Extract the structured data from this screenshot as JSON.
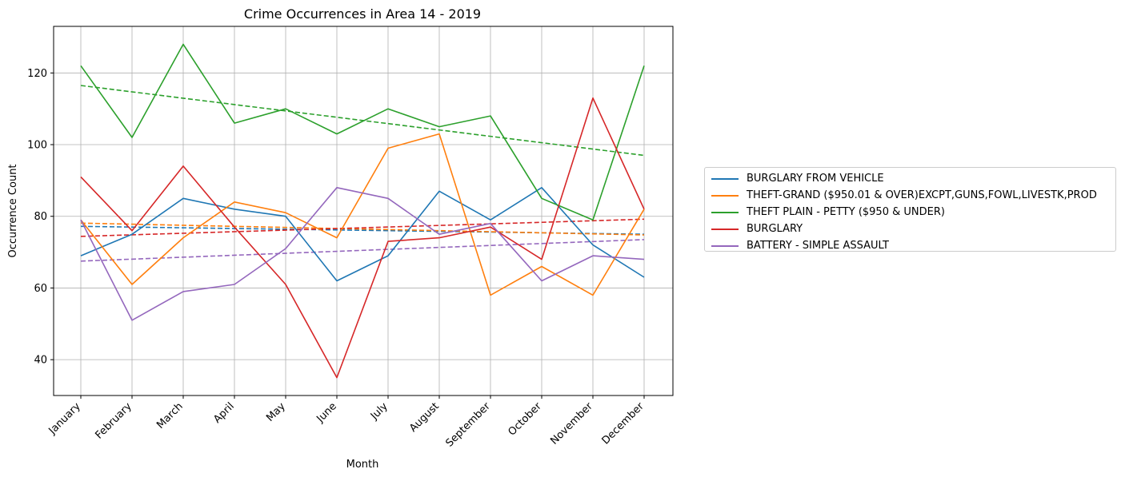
{
  "chart_data": {
    "type": "line",
    "title": "Crime Occurrences in Area 14 - 2019",
    "xlabel": "Month",
    "ylabel": "Occurrence Count",
    "categories": [
      "January",
      "February",
      "March",
      "April",
      "May",
      "June",
      "July",
      "August",
      "September",
      "October",
      "November",
      "December"
    ],
    "ylim": [
      30,
      133
    ],
    "yticks": [
      40,
      60,
      80,
      100,
      120
    ],
    "grid": true,
    "legend_position": "right",
    "series": [
      {
        "name": "BURGLARY FROM VEHICLE",
        "color": "#1f77b4",
        "values": [
          69,
          75,
          85,
          82,
          80,
          62,
          69,
          87,
          79,
          88,
          72,
          63
        ],
        "trend": [
          77.2,
          75.0
        ]
      },
      {
        "name": "THEFT-GRAND ($950.01 & OVER)EXCPT,GUNS,FOWL,LIVESTK,PROD",
        "color": "#ff7f0e",
        "values": [
          79,
          61,
          74,
          84,
          81,
          74,
          99,
          103,
          58,
          66,
          58,
          82
        ],
        "trend": [
          78.1,
          74.8
        ]
      },
      {
        "name": "THEFT PLAIN - PETTY ($950 & UNDER)",
        "color": "#2ca02c",
        "values": [
          122,
          102,
          128,
          106,
          110,
          103,
          110,
          105,
          108,
          85,
          79,
          122
        ],
        "trend": [
          116.5,
          97.0
        ]
      },
      {
        "name": "BURGLARY",
        "color": "#d62728",
        "values": [
          91,
          76,
          94,
          77,
          61,
          35,
          73,
          74,
          77,
          68,
          113,
          82
        ],
        "trend": [
          74.4,
          79.2
        ]
      },
      {
        "name": "BATTERY - SIMPLE ASSAULT",
        "color": "#9467bd",
        "values": [
          79,
          51,
          59,
          61,
          71,
          88,
          85,
          75,
          78,
          62,
          69,
          68
        ],
        "trend": [
          67.5,
          73.5
        ]
      }
    ]
  }
}
